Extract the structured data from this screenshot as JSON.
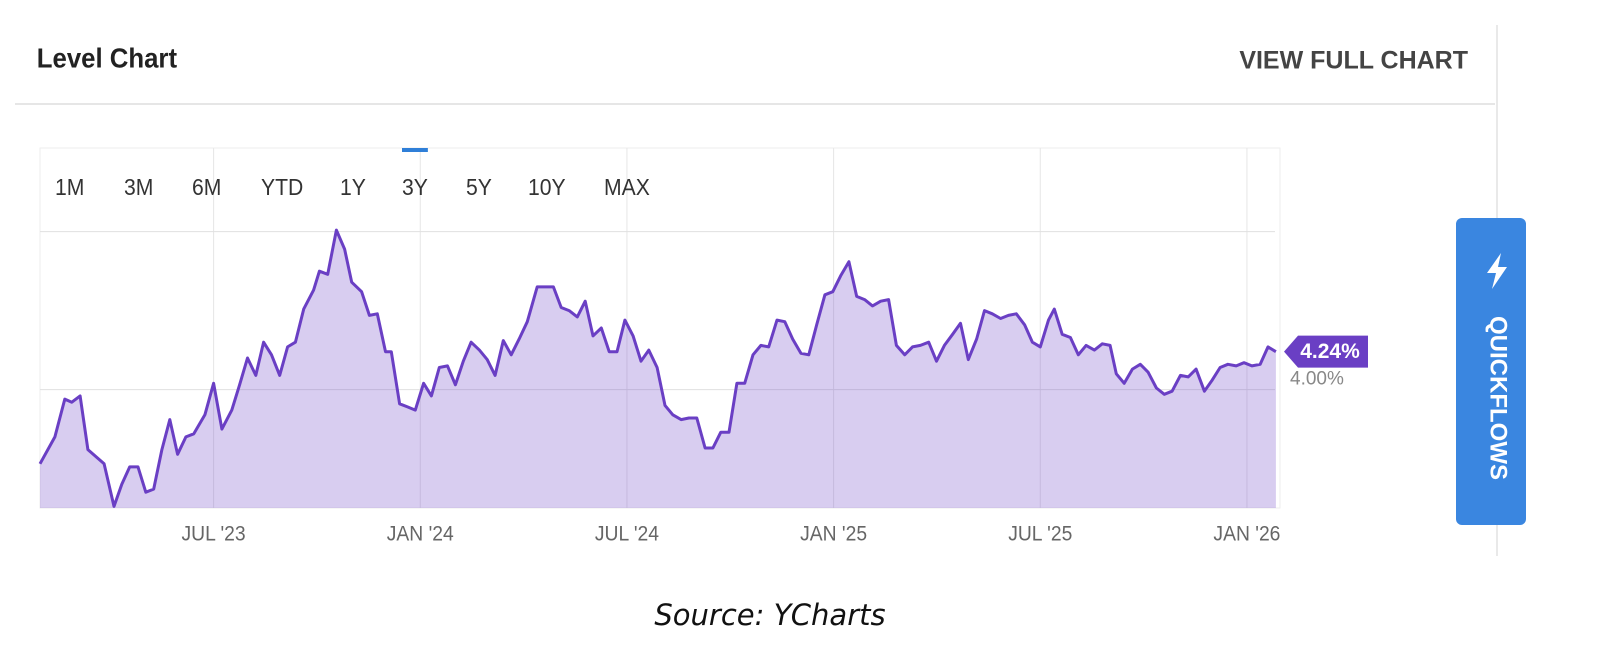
{
  "header": {
    "title": "Level Chart",
    "link": "VIEW FULL CHART"
  },
  "tabs": [
    {
      "label": "1M",
      "state": "normal"
    },
    {
      "label": "3M",
      "state": "normal"
    },
    {
      "label": "6M",
      "state": "normal"
    },
    {
      "label": "YTD",
      "state": "normal"
    },
    {
      "label": "1Y",
      "state": "normal"
    },
    {
      "label": "3Y",
      "state": "active"
    },
    {
      "label": "5Y",
      "state": "normal"
    },
    {
      "label": "10Y",
      "state": "disabled"
    },
    {
      "label": "MAX",
      "state": "disabled"
    }
  ],
  "quickflows": "QUICKFLOWS",
  "source": "Source: YCharts",
  "chart_data": {
    "type": "area",
    "x": [
      2023.08,
      2023.116,
      2023.14,
      2023.157,
      2023.177,
      2023.196,
      2023.235,
      2023.259,
      2023.278,
      2023.297,
      2023.317,
      2023.336,
      2023.355,
      2023.375,
      2023.394,
      2023.413,
      2023.433,
      2023.452,
      2023.479,
      2023.5,
      2023.52,
      2023.544,
      2023.563,
      2023.582,
      2023.602,
      2023.621,
      2023.64,
      2023.66,
      2023.679,
      2023.698,
      2023.718,
      2023.742,
      2023.756,
      2023.776,
      2023.797,
      2023.817,
      2023.834,
      2023.858,
      2023.877,
      2023.896,
      2023.916,
      2023.93,
      2023.95,
      2023.969,
      2023.988,
      2024.008,
      2024.027,
      2024.046,
      2024.066,
      2024.085,
      2024.104,
      2024.123,
      2024.143,
      2024.162,
      2024.181,
      2024.201,
      2024.22,
      2024.239,
      2024.259,
      2024.283,
      2024.307,
      2024.322,
      2024.341,
      2024.36,
      2024.38,
      2024.399,
      2024.418,
      2024.438,
      2024.457,
      2024.476,
      2024.495,
      2024.515,
      2024.534,
      2024.553,
      2024.573,
      2024.592,
      2024.611,
      2024.631,
      2024.65,
      2024.669,
      2024.689,
      2024.708,
      2024.727,
      2024.747,
      2024.766,
      2024.785,
      2024.805,
      2024.824,
      2024.843,
      2024.863,
      2024.882,
      2024.901,
      2024.921,
      2024.94,
      2024.959,
      2024.979,
      2024.998,
      2025.017,
      2025.037,
      2025.056,
      2025.075,
      2025.094,
      2025.114,
      2025.133,
      2025.152,
      2025.172,
      2025.191,
      2025.21,
      2025.23,
      2025.249,
      2025.268,
      2025.288,
      2025.307,
      2025.326,
      2025.346,
      2025.365,
      2025.384,
      2025.404,
      2025.423,
      2025.442,
      2025.462,
      2025.481,
      2025.5,
      2025.52,
      2025.534,
      2025.553,
      2025.573,
      2025.592,
      2025.611,
      2025.631,
      2025.65,
      2025.669,
      2025.684,
      2025.703,
      2025.723,
      2025.742,
      2025.761,
      2025.781,
      2025.8,
      2025.819,
      2025.839,
      2025.858,
      2025.877,
      2025.897,
      2025.916,
      2025.935,
      2025.954,
      2025.974,
      2025.993,
      2026.012,
      2026.032,
      2026.051,
      2026.07
    ],
    "series": [
      {
        "color": "#6a3fc4",
        "values": [
          3.53,
          3.7,
          3.94,
          3.92,
          3.96,
          3.62,
          3.53,
          3.26,
          3.4,
          3.51,
          3.51,
          3.35,
          3.37,
          3.62,
          3.81,
          3.59,
          3.7,
          3.72,
          3.84,
          4.04,
          3.75,
          3.87,
          4.03,
          4.2,
          4.09,
          4.3,
          4.22,
          4.09,
          4.27,
          4.3,
          4.51,
          4.63,
          4.75,
          4.73,
          5.01,
          4.89,
          4.68,
          4.62,
          4.47,
          4.48,
          4.24,
          4.24,
          3.91,
          3.89,
          3.87,
          4.04,
          3.96,
          4.14,
          4.15,
          4.03,
          4.18,
          4.3,
          4.25,
          4.19,
          4.09,
          4.31,
          4.22,
          4.32,
          4.43,
          4.65,
          4.65,
          4.65,
          4.52,
          4.5,
          4.46,
          4.56,
          4.34,
          4.39,
          4.24,
          4.24,
          4.44,
          4.34,
          4.18,
          4.25,
          4.14,
          3.9,
          3.84,
          3.81,
          3.82,
          3.82,
          3.63,
          3.63,
          3.73,
          3.73,
          4.04,
          4.04,
          4.22,
          4.28,
          4.27,
          4.44,
          4.43,
          4.32,
          4.23,
          4.22,
          4.41,
          4.6,
          4.62,
          4.72,
          4.81,
          4.59,
          4.57,
          4.53,
          4.56,
          4.57,
          4.28,
          4.22,
          4.27,
          4.28,
          4.3,
          4.18,
          4.28,
          4.35,
          4.42,
          4.19,
          4.32,
          4.5,
          4.48,
          4.45,
          4.47,
          4.48,
          4.41,
          4.3,
          4.27,
          4.44,
          4.51,
          4.35,
          4.33,
          4.22,
          4.28,
          4.25,
          4.29,
          4.28,
          4.1,
          4.04,
          4.13,
          4.16,
          4.11,
          4.01,
          3.97,
          3.99,
          4.09,
          4.08,
          4.13,
          3.99,
          4.06,
          4.14,
          4.16,
          4.15,
          4.17,
          4.15,
          4.16,
          4.27,
          4.24
        ],
        "current_label": "4.24%"
      }
    ],
    "xlim": [
      2023.08,
      2026.08
    ],
    "xticks": [
      {
        "value": 2023.5,
        "label": "JUL '23"
      },
      {
        "value": 2024.0,
        "label": "JAN '24"
      },
      {
        "value": 2024.5,
        "label": "JUL '24"
      },
      {
        "value": 2025.0,
        "label": "JAN '25"
      },
      {
        "value": 2025.5,
        "label": "JUL '25"
      },
      {
        "value": 2026.0,
        "label": "JAN '26"
      }
    ],
    "ylim": [
      3.25,
      5.53
    ],
    "yticks": [
      {
        "value": 4,
        "label": "4.00%"
      },
      {
        "value": 5,
        "label": null
      }
    ],
    "grid": true
  }
}
